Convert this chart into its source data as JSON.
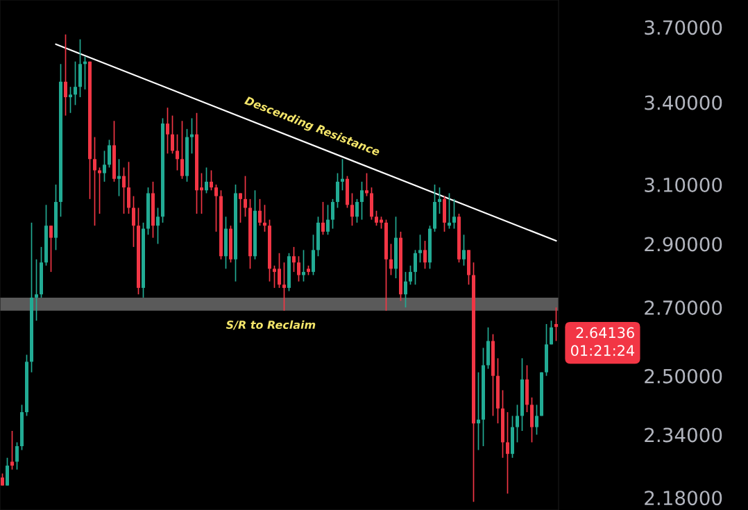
{
  "chart_data": {
    "type": "candlestick",
    "categories": [
      null,
      null,
      null,
      null,
      null,
      null,
      null,
      null,
      null,
      null,
      null,
      null,
      null,
      null,
      null,
      null,
      null,
      null,
      null,
      null,
      null,
      null,
      null,
      null,
      null,
      null,
      null,
      null,
      null,
      null,
      null,
      null,
      null,
      null,
      null,
      null,
      null,
      null,
      null,
      null,
      null,
      null,
      null,
      null,
      null,
      null,
      null,
      null,
      null,
      null,
      null,
      null,
      null,
      null,
      null,
      null,
      null,
      null,
      null,
      null,
      null,
      null,
      null,
      null,
      null,
      null,
      null,
      null,
      null,
      null,
      null,
      null,
      null,
      null,
      null,
      null,
      null,
      null,
      null,
      null,
      null,
      null,
      null,
      null,
      null,
      null,
      null,
      null,
      null,
      null,
      null,
      null,
      null,
      null,
      null,
      null,
      null,
      null,
      null,
      null,
      null,
      null,
      null,
      null,
      null,
      null,
      null,
      null,
      null,
      null,
      null,
      null,
      null,
      null,
      null
    ],
    "ohlc": [
      [
        2.23,
        2.24,
        2.21,
        2.21
      ],
      [
        2.21,
        2.28,
        2.21,
        2.26
      ],
      [
        2.27,
        2.35,
        2.25,
        2.26
      ],
      [
        2.27,
        2.32,
        2.25,
        2.31
      ],
      [
        2.31,
        2.42,
        2.3,
        2.4
      ],
      [
        2.4,
        2.56,
        2.39,
        2.54
      ],
      [
        2.54,
        2.97,
        2.51,
        2.73
      ],
      [
        2.73,
        2.85,
        2.66,
        2.74
      ],
      [
        2.74,
        2.89,
        2.73,
        2.84
      ],
      [
        2.84,
        3.03,
        2.83,
        2.96
      ],
      [
        2.96,
        2.96,
        2.81,
        2.92
      ],
      [
        2.92,
        3.1,
        2.88,
        3.04
      ],
      [
        3.04,
        3.55,
        2.99,
        3.48
      ],
      [
        3.48,
        3.67,
        3.35,
        3.42
      ],
      [
        3.42,
        3.46,
        3.36,
        3.43
      ],
      [
        3.43,
        3.56,
        3.39,
        3.46
      ],
      [
        3.46,
        3.65,
        3.42,
        3.55
      ],
      [
        3.55,
        3.58,
        3.45,
        3.56
      ],
      [
        3.56,
        3.56,
        3.05,
        3.19
      ],
      [
        3.19,
        3.27,
        2.96,
        3.15
      ],
      [
        3.15,
        3.16,
        3.0,
        3.14
      ],
      [
        3.14,
        3.22,
        3.11,
        3.17
      ],
      [
        3.17,
        3.26,
        3.16,
        3.24
      ],
      [
        3.24,
        3.33,
        3.11,
        3.12
      ],
      [
        3.12,
        3.19,
        3.06,
        3.13
      ],
      [
        3.13,
        3.16,
        3.0,
        3.09
      ],
      [
        3.09,
        3.18,
        3.0,
        3.02
      ],
      [
        3.02,
        3.06,
        2.89,
        2.96
      ],
      [
        2.96,
        3.02,
        2.74,
        2.76
      ],
      [
        2.76,
        2.97,
        2.73,
        2.95
      ],
      [
        2.95,
        3.09,
        2.93,
        3.07
      ],
      [
        3.07,
        3.11,
        2.92,
        2.96
      ],
      [
        2.96,
        3.02,
        2.9,
        2.99
      ],
      [
        2.99,
        3.34,
        2.97,
        3.32
      ],
      [
        3.32,
        3.38,
        3.21,
        3.28
      ],
      [
        3.28,
        3.35,
        3.21,
        3.22
      ],
      [
        3.22,
        3.28,
        3.15,
        3.19
      ],
      [
        3.19,
        3.33,
        3.12,
        3.13
      ],
      [
        3.13,
        3.3,
        3.11,
        3.27
      ],
      [
        3.27,
        3.34,
        3.21,
        3.28
      ],
      [
        3.28,
        3.36,
        3.0,
        3.08
      ],
      [
        3.09,
        3.14,
        3.0,
        3.08
      ],
      [
        3.08,
        3.16,
        3.07,
        3.11
      ],
      [
        3.11,
        3.15,
        3.08,
        3.09
      ],
      [
        3.09,
        3.1,
        2.94,
        3.06
      ],
      [
        3.06,
        3.08,
        2.85,
        2.86
      ],
      [
        2.86,
        2.99,
        2.82,
        2.95
      ],
      [
        2.95,
        2.96,
        2.84,
        2.85
      ],
      [
        2.85,
        3.1,
        2.78,
        3.07
      ],
      [
        3.07,
        3.07,
        2.97,
        3.05
      ],
      [
        3.05,
        3.13,
        2.99,
        3.02
      ],
      [
        3.02,
        3.05,
        2.82,
        2.86
      ],
      [
        2.86,
        3.08,
        2.85,
        3.01
      ],
      [
        3.01,
        3.05,
        2.96,
        2.97
      ],
      [
        2.97,
        3.03,
        2.94,
        2.96
      ],
      [
        2.96,
        2.98,
        2.78,
        2.82
      ],
      [
        2.82,
        2.83,
        2.76,
        2.81
      ],
      [
        2.82,
        2.87,
        2.76,
        2.77
      ],
      [
        2.77,
        2.84,
        2.69,
        2.76
      ],
      [
        2.76,
        2.87,
        2.75,
        2.86
      ],
      [
        2.86,
        2.89,
        2.81,
        2.84
      ],
      [
        2.84,
        2.86,
        2.78,
        2.8
      ],
      [
        2.8,
        2.88,
        2.78,
        2.81
      ],
      [
        2.82,
        2.83,
        2.8,
        2.81
      ],
      [
        2.81,
        2.93,
        2.8,
        2.88
      ],
      [
        2.88,
        2.99,
        2.86,
        2.97
      ],
      [
        2.97,
        3.04,
        2.93,
        2.94
      ],
      [
        2.94,
        3.03,
        2.93,
        2.98
      ],
      [
        2.98,
        3.05,
        2.95,
        3.04
      ],
      [
        3.04,
        3.14,
        3.02,
        3.11
      ],
      [
        3.11,
        3.19,
        3.08,
        3.12
      ],
      [
        3.12,
        3.13,
        3.02,
        3.03
      ],
      [
        3.03,
        3.07,
        2.96,
        2.99
      ],
      [
        2.99,
        3.05,
        2.97,
        3.04
      ],
      [
        3.04,
        3.11,
        2.98,
        3.08
      ],
      [
        3.08,
        3.14,
        3.06,
        3.07
      ],
      [
        3.07,
        3.09,
        2.98,
        2.99
      ],
      [
        2.99,
        3.01,
        2.96,
        2.97
      ],
      [
        2.98,
        2.99,
        2.95,
        2.97
      ],
      [
        2.97,
        2.98,
        2.69,
        2.85
      ],
      [
        2.85,
        2.9,
        2.8,
        2.82
      ],
      [
        2.82,
        2.99,
        2.79,
        2.92
      ],
      [
        2.92,
        2.94,
        2.72,
        2.74
      ],
      [
        2.74,
        2.81,
        2.7,
        2.78
      ],
      [
        2.78,
        2.83,
        2.77,
        2.81
      ],
      [
        2.81,
        2.88,
        2.77,
        2.87
      ],
      [
        2.87,
        2.93,
        2.84,
        2.88
      ],
      [
        2.88,
        2.91,
        2.82,
        2.84
      ],
      [
        2.84,
        2.96,
        2.82,
        2.95
      ],
      [
        2.95,
        3.1,
        2.94,
        3.04
      ],
      [
        3.04,
        3.09,
        3.0,
        3.05
      ],
      [
        3.05,
        3.06,
        2.94,
        2.97
      ],
      [
        2.96,
        3.07,
        2.95,
        2.97
      ],
      [
        2.97,
        3.05,
        2.95,
        2.99
      ],
      [
        2.99,
        3.0,
        2.84,
        2.85
      ],
      [
        2.85,
        2.93,
        2.83,
        2.88
      ],
      [
        2.88,
        2.88,
        2.77,
        2.8
      ],
      [
        2.8,
        2.84,
        2.17,
        2.37
      ],
      [
        2.37,
        2.51,
        2.3,
        2.38
      ],
      [
        2.38,
        2.58,
        2.31,
        2.53
      ],
      [
        2.53,
        2.64,
        2.52,
        2.6
      ],
      [
        2.6,
        2.62,
        2.39,
        2.5
      ],
      [
        2.5,
        2.55,
        2.37,
        2.41
      ],
      [
        2.41,
        2.46,
        2.28,
        2.32
      ],
      [
        2.32,
        2.4,
        2.19,
        2.29
      ],
      [
        2.29,
        2.39,
        2.28,
        2.36
      ],
      [
        2.36,
        2.42,
        2.32,
        2.39
      ],
      [
        2.39,
        2.55,
        2.35,
        2.49
      ],
      [
        2.49,
        2.53,
        2.4,
        2.42
      ],
      [
        2.42,
        2.44,
        2.32,
        2.36
      ],
      [
        2.36,
        2.42,
        2.34,
        2.39
      ],
      [
        2.39,
        2.51,
        2.39,
        2.51
      ],
      [
        2.51,
        2.65,
        2.5,
        2.59
      ],
      [
        2.59,
        2.66,
        2.59,
        2.64
      ],
      [
        2.65,
        2.7,
        2.6,
        2.64136
      ]
    ],
    "colors": [
      "#f23645",
      "#22ab94",
      "#f23645",
      "#22ab94",
      "#22ab94",
      "#22ab94",
      "#22ab94",
      "#22ab94",
      "#22ab94",
      "#22ab94",
      "#f23645",
      "#22ab94",
      "#22ab94",
      "#f23645",
      "#22ab94",
      "#22ab94",
      "#22ab94",
      "#22ab94",
      "#f23645",
      "#f23645",
      "#f23645",
      "#22ab94",
      "#22ab94",
      "#f23645",
      "#22ab94",
      "#f23645",
      "#f23645",
      "#f23645",
      "#f23645",
      "#22ab94",
      "#22ab94",
      "#f23645",
      "#22ab94",
      "#22ab94",
      "#f23645",
      "#f23645",
      "#f23645",
      "#f23645",
      "#22ab94",
      "#22ab94",
      "#f23645",
      "#f23645",
      "#22ab94",
      "#f23645",
      "#f23645",
      "#f23645",
      "#22ab94",
      "#f23645",
      "#22ab94",
      "#f23645",
      "#f23645",
      "#f23645",
      "#22ab94",
      "#f23645",
      "#f23645",
      "#f23645",
      "#f23645",
      "#f23645",
      "#f23645",
      "#22ab94",
      "#f23645",
      "#f23645",
      "#22ab94",
      "#f23645",
      "#22ab94",
      "#22ab94",
      "#f23645",
      "#22ab94",
      "#22ab94",
      "#22ab94",
      "#22ab94",
      "#f23645",
      "#f23645",
      "#22ab94",
      "#22ab94",
      "#f23645",
      "#f23645",
      "#f23645",
      "#f23645",
      "#f23645",
      "#f23645",
      "#22ab94",
      "#f23645",
      "#22ab94",
      "#22ab94",
      "#22ab94",
      "#22ab94",
      "#f23645",
      "#22ab94",
      "#22ab94",
      "#22ab94",
      "#f23645",
      "#22ab94",
      "#22ab94",
      "#f23645",
      "#22ab94",
      "#f23645",
      "#f23645",
      "#22ab94",
      "#22ab94",
      "#22ab94",
      "#f23645",
      "#f23645",
      "#f23645",
      "#f23645",
      "#22ab94",
      "#22ab94",
      "#22ab94",
      "#f23645",
      "#f23645",
      "#22ab94",
      "#22ab94",
      "#22ab94",
      "#22ab94",
      "#f23645"
    ],
    "series": [
      {
        "type": "line",
        "values": [
          null,
          null,
          null,
          null,
          null,
          null,
          null,
          null,
          null,
          null,
          null,
          3.63,
          null,
          null,
          null,
          null,
          null,
          null,
          null,
          null,
          null,
          null,
          null,
          null,
          null,
          null,
          null,
          null,
          null,
          null,
          null,
          null,
          null,
          null,
          null,
          null,
          null,
          null,
          null,
          null,
          null,
          null,
          null,
          null,
          null,
          null,
          null,
          null,
          null,
          null,
          null,
          null,
          null,
          null,
          null,
          null,
          null,
          null,
          null,
          null,
          null,
          null,
          null,
          null,
          null,
          null,
          null,
          null,
          null,
          null,
          null,
          null,
          null,
          null,
          null,
          null,
          null,
          null,
          null,
          null,
          null,
          null,
          null,
          null,
          null,
          null,
          null,
          null,
          null,
          null,
          null,
          null,
          null,
          null,
          null,
          null,
          null,
          null,
          null,
          null,
          null,
          null,
          null,
          null,
          null,
          null,
          null,
          null,
          null,
          null,
          null,
          null,
          null,
          null,
          2.91
        ],
        "color": "#ffffff"
      }
    ],
    "bands": [
      {
        "axis": "y",
        "from": 2.69,
        "to": 2.73,
        "label": "S/R to Reclaim",
        "color": "#5a5a5a"
      }
    ],
    "annotations": [
      "Descending Resistance",
      "2.64136",
      "01:21:24"
    ],
    "log": true,
    "ylim": [
      2.15,
      3.815
    ],
    "yticks": [
      {
        "value": 2.18,
        "label": "2.18000"
      },
      {
        "value": 2.34,
        "label": "2.34000"
      },
      {
        "value": 2.5,
        "label": "2.50000"
      },
      {
        "value": 2.7,
        "label": "2.70000"
      },
      {
        "value": 2.9,
        "label": "2.90000"
      },
      {
        "value": 3.1,
        "label": "3.10000"
      },
      {
        "value": 3.4,
        "label": "3.40000"
      },
      {
        "value": 3.7,
        "label": "3.70000"
      }
    ],
    "tick_labels": "y",
    "grid": false
  }
}
